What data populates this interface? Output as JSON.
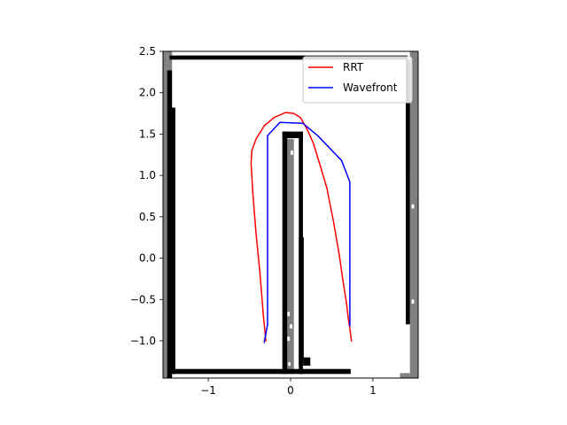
{
  "chart_data": {
    "type": "line",
    "title": "",
    "xlabel": "",
    "ylabel": "",
    "xlim": [
      -1.55,
      1.55
    ],
    "ylim": [
      -1.45,
      2.5
    ],
    "grid": false,
    "legend_position": "top-right",
    "x_ticks": [
      {
        "value": -1,
        "label": "−1"
      },
      {
        "value": 0,
        "label": "0"
      },
      {
        "value": 1,
        "label": "1"
      }
    ],
    "y_ticks": [
      {
        "value": -1.0,
        "label": "−1.0"
      },
      {
        "value": -0.5,
        "label": "−0.5"
      },
      {
        "value": 0.0,
        "label": "0.0"
      },
      {
        "value": 0.5,
        "label": "0.5"
      },
      {
        "value": 1.0,
        "label": "1.0"
      },
      {
        "value": 1.5,
        "label": "1.5"
      },
      {
        "value": 2.0,
        "label": "2.0"
      },
      {
        "value": 2.5,
        "label": "2.5"
      }
    ],
    "series": [
      {
        "name": "RRT",
        "color": "#ff0000",
        "x": [
          -0.3,
          -0.33,
          -0.37,
          -0.42,
          -0.46,
          -0.48,
          -0.47,
          -0.42,
          -0.32,
          -0.2,
          -0.06,
          0.04,
          0.12,
          0.2,
          0.28,
          0.36,
          0.44,
          0.52,
          0.59,
          0.64,
          0.68,
          0.7,
          0.72,
          0.74
        ],
        "y": [
          -1.0,
          -0.7,
          -0.2,
          0.3,
          0.8,
          1.15,
          1.3,
          1.44,
          1.6,
          1.7,
          1.76,
          1.75,
          1.7,
          1.56,
          1.38,
          1.12,
          0.85,
          0.45,
          0.05,
          -0.3,
          -0.55,
          -0.72,
          -0.85,
          -1.0
        ]
      },
      {
        "name": "Wavefront",
        "color": "#0000ff",
        "x": [
          -0.32,
          -0.28,
          -0.28,
          -0.28,
          -0.13,
          0.15,
          0.33,
          0.62,
          0.72,
          0.72
        ],
        "y": [
          -1.02,
          -0.8,
          0.0,
          1.48,
          1.64,
          1.63,
          1.48,
          1.18,
          0.92,
          -0.82
        ]
      }
    ],
    "occupancy_map": {
      "cell_size": 0.05,
      "black_color": "#000000",
      "gray_color": "#808080",
      "black_rects": [
        [
          -1.47,
          2.4,
          2.89,
          0.05
        ],
        [
          -1.47,
          -1.4,
          2.2,
          0.06
        ],
        [
          -1.5,
          -1.45,
          0.06,
          3.72
        ],
        [
          -1.45,
          -1.4,
          0.05,
          3.22
        ],
        [
          1.4,
          -0.8,
          0.05,
          3.2
        ],
        [
          -0.1,
          -1.4,
          0.06,
          2.93
        ],
        [
          0.1,
          -1.4,
          0.05,
          2.93
        ],
        [
          -0.1,
          1.45,
          0.25,
          0.08
        ],
        [
          0.1,
          -1.3,
          0.06,
          1.55
        ],
        [
          0.16,
          -1.3,
          0.08,
          0.1
        ]
      ],
      "gray_rects": [
        [
          -1.55,
          -1.45,
          0.05,
          3.95
        ],
        [
          -1.5,
          2.27,
          0.06,
          0.23
        ],
        [
          1.45,
          -1.45,
          0.1,
          3.95
        ],
        [
          -0.04,
          -1.4,
          0.08,
          2.84
        ],
        [
          1.33,
          -1.45,
          0.12,
          0.06
        ],
        [
          1.4,
          1.05,
          0.05,
          1.35
        ]
      ],
      "white_rects": [
        [
          -0.04,
          -0.7,
          0.03,
          0.05
        ],
        [
          -0.01,
          -0.85,
          0.03,
          0.05
        ],
        [
          -0.04,
          -1.0,
          0.03,
          0.05
        ],
        [
          -0.03,
          -1.3,
          0.03,
          0.04
        ],
        [
          0.0,
          1.25,
          0.03,
          0.05
        ],
        [
          1.47,
          0.6,
          0.03,
          0.05
        ],
        [
          1.47,
          -0.55,
          0.03,
          0.05
        ]
      ]
    }
  }
}
